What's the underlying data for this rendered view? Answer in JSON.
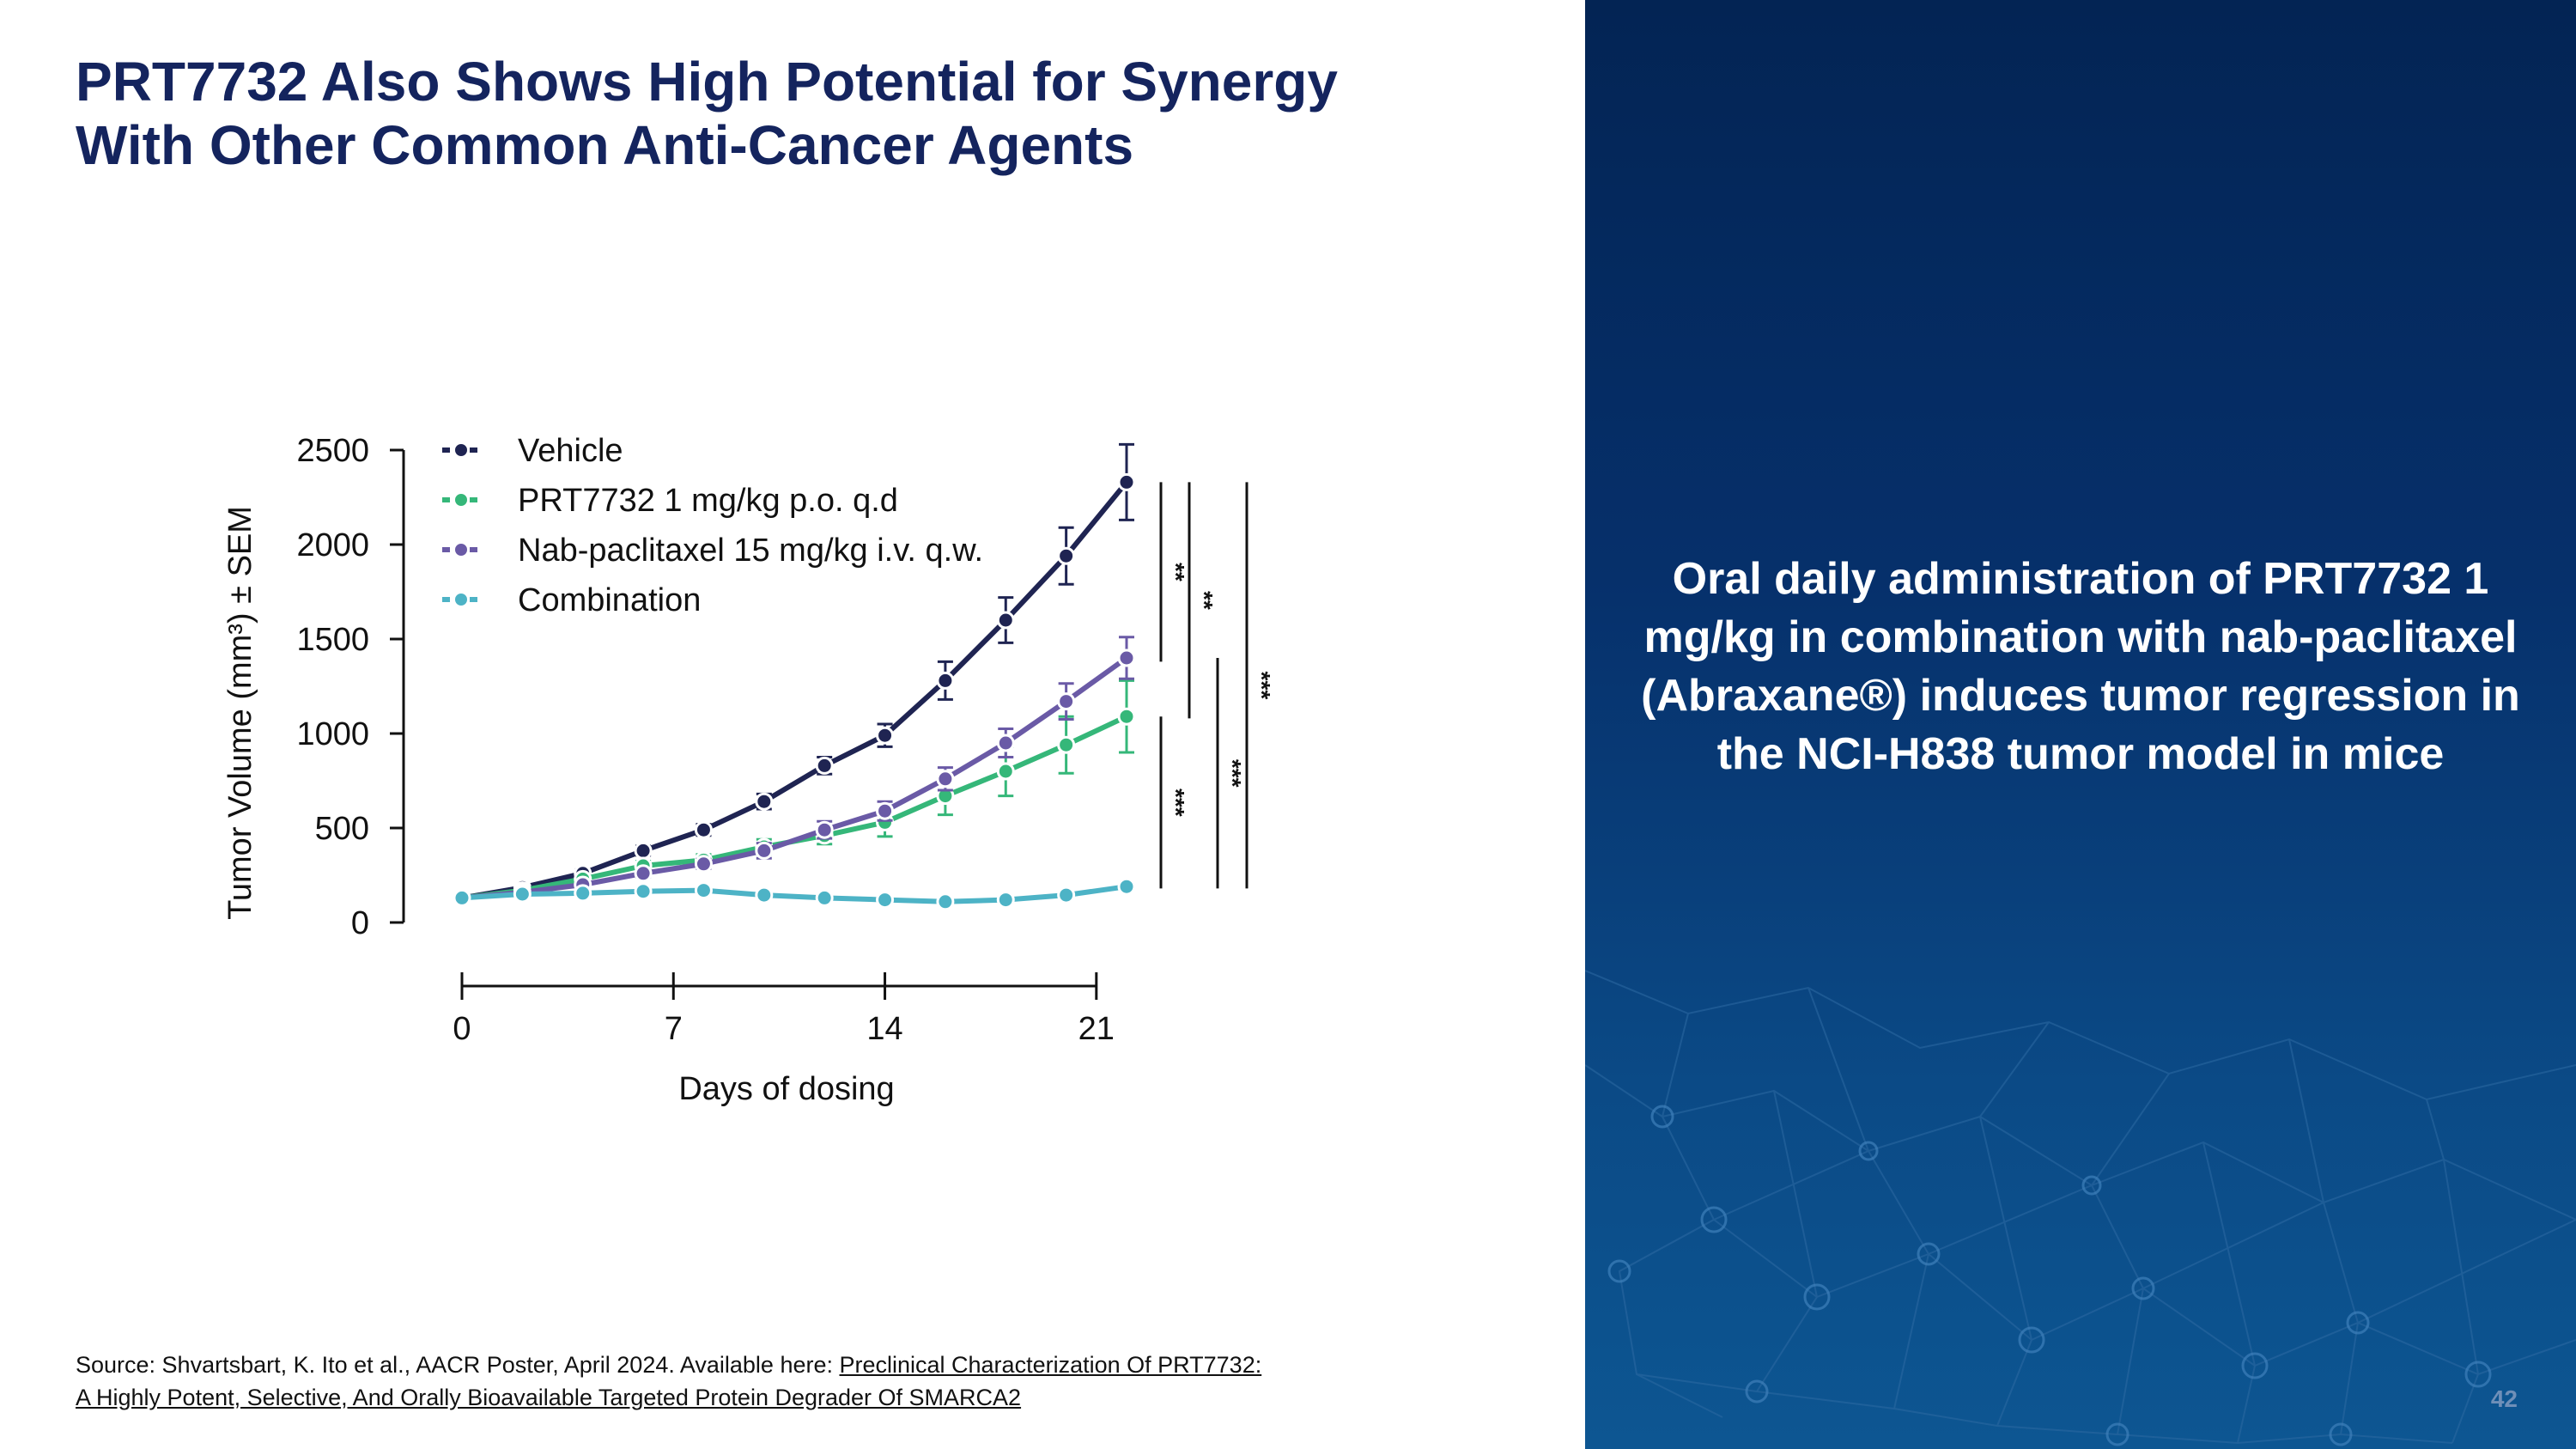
{
  "slide": {
    "title_line1": "PRT7732 Also Shows High Potential for Synergy",
    "title_line2": "With Other Common Anti-Cancer Agents",
    "panel_text": "Oral daily administration of PRT7732 1 mg/kg in combination with nab-paclitaxel (Abraxane®) induces tumor regression in the NCI-H838 tumor model in mice",
    "page_number": "42",
    "source_prefix": "Source:  Shvartsbart, K. Ito et al., AACR Poster, April 2024. Available here: ",
    "source_link_line1": "Preclinical Characterization Of PRT7732:",
    "source_link_line2": "A Highly Potent, Selective, And Orally Bioavailable Targeted Protein Degrader Of SMARCA2"
  },
  "colors": {
    "title": "#14245e",
    "panel_top": "#032454",
    "panel_bottom": "#0d5692"
  },
  "chart_data": {
    "type": "line",
    "xlabel": "Days of dosing",
    "ylabel": "Tumor Volume (mm³) ± SEM",
    "xlim": [
      0,
      22
    ],
    "ylim": [
      0,
      2500
    ],
    "xticks": [
      0,
      7,
      14,
      21
    ],
    "yticks": [
      0,
      500,
      1000,
      1500,
      2000,
      2500
    ],
    "legend_position": "top-left",
    "grid": false,
    "x": [
      0,
      2,
      4,
      6,
      8,
      10,
      12,
      14,
      16,
      18,
      20,
      22
    ],
    "series": [
      {
        "name": "Vehicle",
        "color": "#1f2452",
        "values": [
          130,
          185,
          260,
          380,
          490,
          640,
          830,
          990,
          1280,
          1600,
          1940,
          2330
        ],
        "errors": [
          0,
          10,
          20,
          25,
          30,
          40,
          45,
          60,
          100,
          120,
          150,
          200
        ]
      },
      {
        "name": "PRT7732 1 mg/kg p.o. q.d",
        "color": "#35b779",
        "values": [
          130,
          170,
          230,
          300,
          330,
          400,
          460,
          530,
          670,
          800,
          940,
          1090
        ],
        "errors": [
          0,
          10,
          20,
          25,
          30,
          40,
          45,
          75,
          100,
          130,
          150,
          190
        ]
      },
      {
        "name": "Nab-paclitaxel 15 mg/kg i.v. q.w.",
        "color": "#6a5aa6",
        "values": [
          130,
          160,
          200,
          260,
          310,
          380,
          490,
          590,
          760,
          950,
          1170,
          1400
        ],
        "errors": [
          0,
          10,
          15,
          20,
          25,
          40,
          45,
          50,
          60,
          75,
          95,
          110
        ]
      },
      {
        "name": "Combination",
        "color": "#4db3c6",
        "values": [
          130,
          150,
          155,
          165,
          170,
          145,
          130,
          120,
          110,
          120,
          145,
          190
        ],
        "errors": [
          0,
          5,
          5,
          10,
          10,
          10,
          10,
          10,
          10,
          10,
          10,
          15
        ]
      }
    ],
    "significance": [
      {
        "label": "**",
        "y_range": [
          1380,
          2330
        ]
      },
      {
        "label": "**",
        "y_range": [
          1080,
          2330
        ]
      },
      {
        "label": "***",
        "y_range": [
          180,
          2330
        ]
      },
      {
        "label": "***",
        "y_range": [
          180,
          1400
        ]
      },
      {
        "label": "***",
        "y_range": [
          180,
          1090
        ]
      }
    ]
  }
}
